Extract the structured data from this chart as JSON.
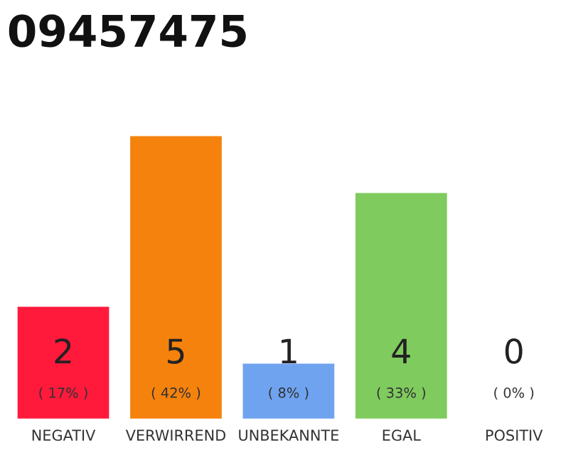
{
  "chart_data": {
    "type": "bar",
    "title": "09457475",
    "categories": [
      "NEGATIV",
      "VERWIRREND",
      "UNBEKANNTE",
      "EGAL",
      "POSITIV"
    ],
    "values": [
      2,
      5,
      1,
      4,
      0
    ],
    "colors": [
      "#ff1a3c",
      "#f5820d",
      "#6fa3ef",
      "#7fcb5e",
      null
    ],
    "data_labels": true,
    "annotations": [
      "( 17% )",
      "( 42% )",
      "( 8% )",
      "( 33% )",
      "( 0% )"
    ],
    "grid": false,
    "legend": false
  }
}
